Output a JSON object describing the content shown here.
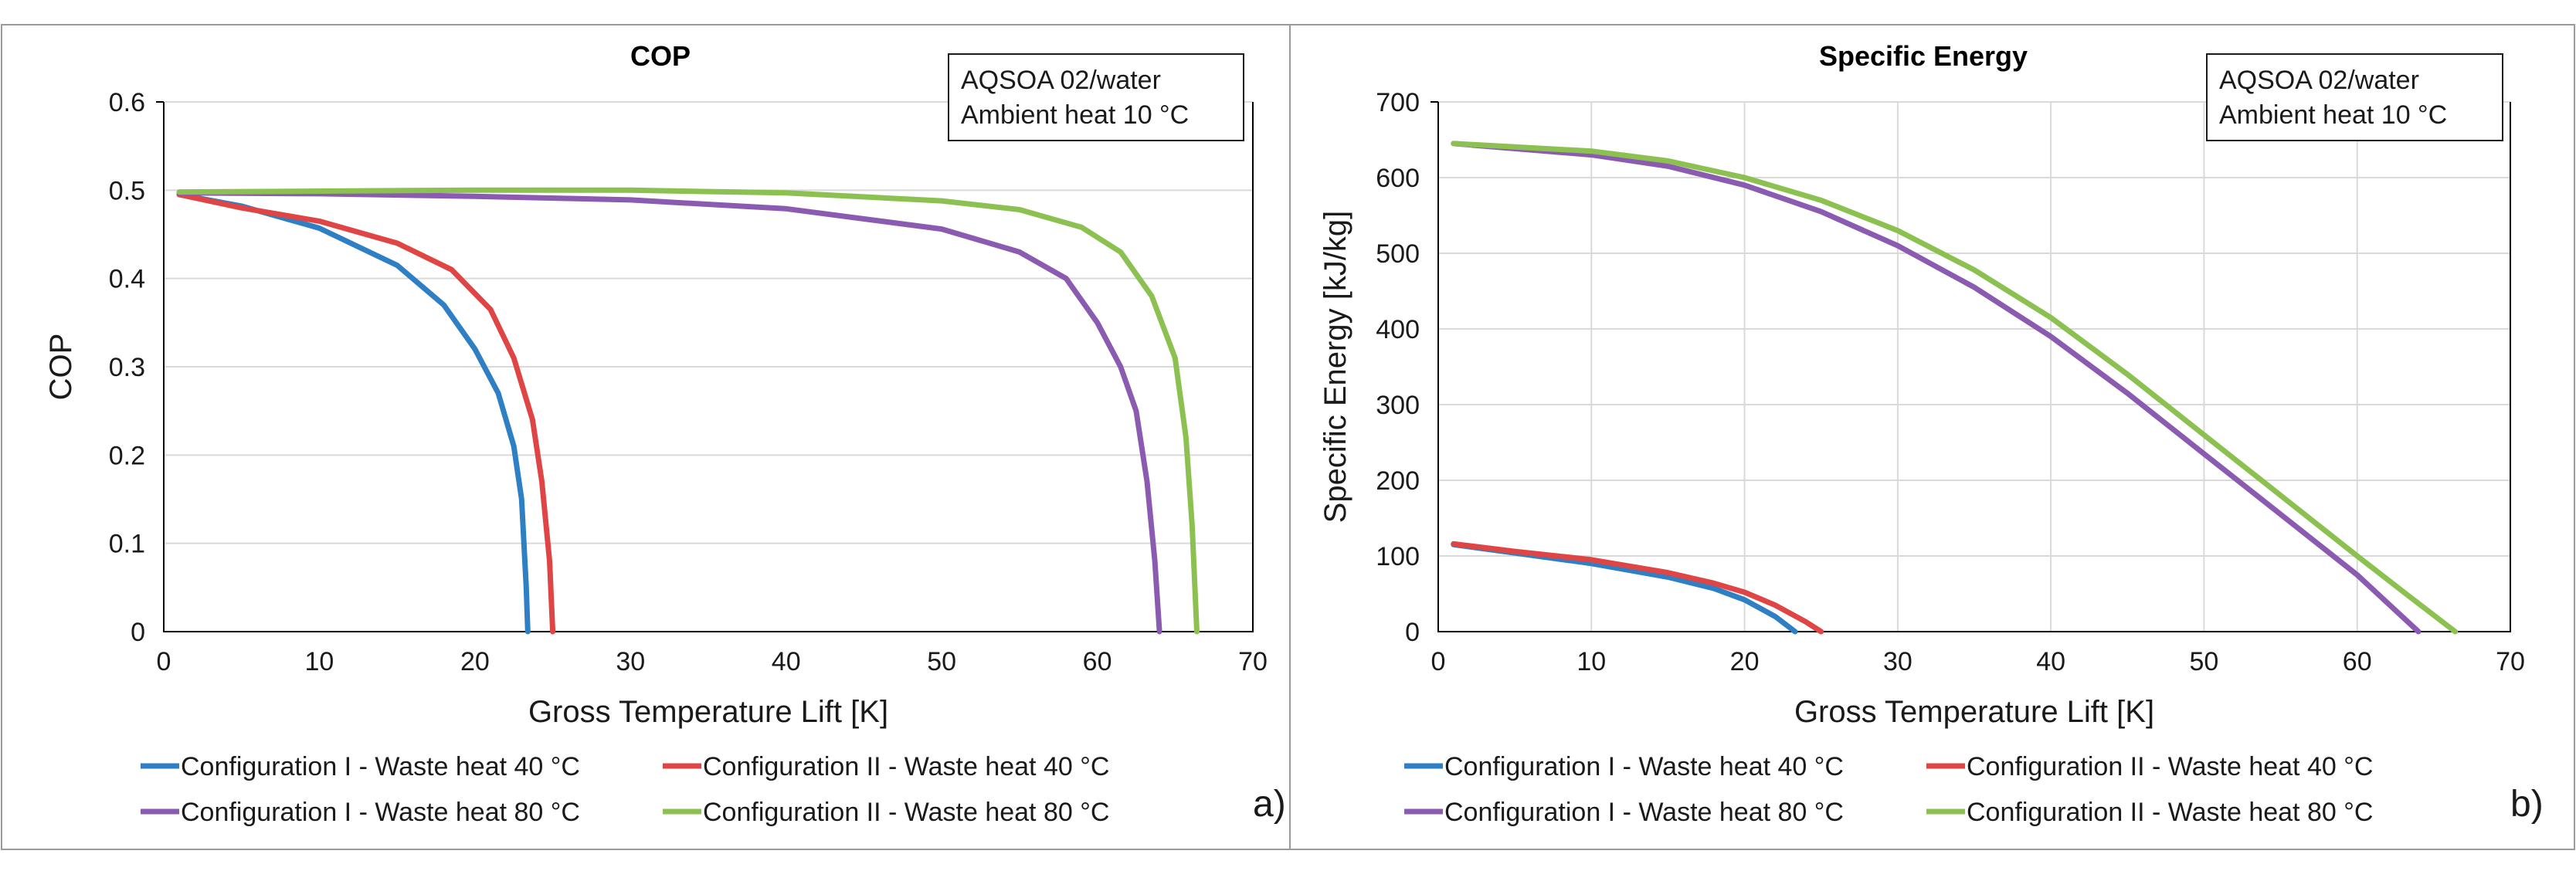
{
  "colors": {
    "series_1": "#2e7fc4",
    "series_2": "#e04545",
    "series_3": "#8a5bb0",
    "series_4": "#8cc152"
  },
  "chart_data": [
    {
      "type": "line",
      "title": "COP",
      "xlabel": "Gross Temperature Lift [K]",
      "ylabel": "COP",
      "xlim": [
        0,
        70
      ],
      "ylim": [
        0,
        0.6
      ],
      "xticks": [
        "0",
        "10",
        "20",
        "30",
        "40",
        "50",
        "60",
        "70"
      ],
      "yticks": [
        "0",
        "0.1",
        "0.2",
        "0.3",
        "0.4",
        "0.5",
        "0.6"
      ],
      "grid": "horizontal",
      "annotation": [
        "AQSOA 02/water",
        "Ambient heat 10 °C"
      ],
      "panel_label": "a)",
      "legend_position": "bottom",
      "series": [
        {
          "name": "Configuration I - Waste heat 40 °C",
          "points": [
            [
              1,
              0.495
            ],
            [
              5,
              0.482
            ],
            [
              10,
              0.457
            ],
            [
              15,
              0.415
            ],
            [
              18,
              0.37
            ],
            [
              20,
              0.32
            ],
            [
              21.5,
              0.27
            ],
            [
              22.5,
              0.21
            ],
            [
              23,
              0.15
            ],
            [
              23.3,
              0.05
            ],
            [
              23.4,
              0
            ]
          ]
        },
        {
          "name": "Configuration II - Waste heat 40 °C",
          "points": [
            [
              1,
              0.495
            ],
            [
              5,
              0.48
            ],
            [
              10,
              0.465
            ],
            [
              15,
              0.44
            ],
            [
              18.5,
              0.41
            ],
            [
              21,
              0.365
            ],
            [
              22.5,
              0.31
            ],
            [
              23.7,
              0.24
            ],
            [
              24.3,
              0.17
            ],
            [
              24.8,
              0.08
            ],
            [
              25,
              0
            ]
          ]
        },
        {
          "name": "Configuration I - Waste heat 80 °C",
          "points": [
            [
              1,
              0.497
            ],
            [
              10,
              0.496
            ],
            [
              20,
              0.493
            ],
            [
              30,
              0.489
            ],
            [
              40,
              0.479
            ],
            [
              50,
              0.456
            ],
            [
              55,
              0.43
            ],
            [
              58,
              0.4
            ],
            [
              60,
              0.35
            ],
            [
              61.5,
              0.3
            ],
            [
              62.5,
              0.25
            ],
            [
              63.2,
              0.17
            ],
            [
              63.7,
              0.08
            ],
            [
              64,
              0
            ]
          ]
        },
        {
          "name": "Configuration II - Waste heat 80 °C",
          "points": [
            [
              1,
              0.498
            ],
            [
              10,
              0.499
            ],
            [
              20,
              0.5
            ],
            [
              30,
              0.5
            ],
            [
              40,
              0.497
            ],
            [
              50,
              0.488
            ],
            [
              55,
              0.478
            ],
            [
              59,
              0.458
            ],
            [
              61.5,
              0.43
            ],
            [
              63.5,
              0.38
            ],
            [
              65,
              0.31
            ],
            [
              65.7,
              0.22
            ],
            [
              66.1,
              0.12
            ],
            [
              66.4,
              0
            ]
          ]
        }
      ]
    },
    {
      "type": "line",
      "title": "Specific Energy",
      "xlabel": "Gross Temperature Lift [K]",
      "ylabel": "Specific Energy [kJ/kg]",
      "xlim": [
        0,
        70
      ],
      "ylim": [
        0,
        700
      ],
      "xticks": [
        "0",
        "10",
        "20",
        "30",
        "40",
        "50",
        "60",
        "70"
      ],
      "yticks": [
        "0",
        "100",
        "200",
        "300",
        "400",
        "500",
        "600",
        "700"
      ],
      "grid": "both",
      "annotation": [
        "AQSOA 02/water",
        "Ambient heat 10 °C"
      ],
      "panel_label": "b)",
      "legend_position": "bottom",
      "series": [
        {
          "name": "Configuration I - Waste heat 40 °C",
          "points": [
            [
              1,
              115
            ],
            [
              5,
              104
            ],
            [
              10,
              90
            ],
            [
              15,
              72
            ],
            [
              18,
              57
            ],
            [
              20,
              42
            ],
            [
              22,
              20
            ],
            [
              23.3,
              0
            ]
          ]
        },
        {
          "name": "Configuration II - Waste heat 40 °C",
          "points": [
            [
              1,
              116
            ],
            [
              5,
              106
            ],
            [
              10,
              95
            ],
            [
              15,
              78
            ],
            [
              18,
              64
            ],
            [
              20,
              52
            ],
            [
              22,
              35
            ],
            [
              24,
              13
            ],
            [
              25,
              0
            ]
          ]
        },
        {
          "name": "Configuration I - Waste heat 80 °C",
          "points": [
            [
              1,
              645
            ],
            [
              10,
              630
            ],
            [
              15,
              615
            ],
            [
              20,
              590
            ],
            [
              25,
              555
            ],
            [
              30,
              510
            ],
            [
              35,
              455
            ],
            [
              40,
              390
            ],
            [
              45,
              315
            ],
            [
              50,
              235
            ],
            [
              55,
              155
            ],
            [
              60,
              75
            ],
            [
              64,
              0
            ]
          ]
        },
        {
          "name": "Configuration II - Waste heat 80 °C",
          "points": [
            [
              1,
              645
            ],
            [
              10,
              635
            ],
            [
              15,
              622
            ],
            [
              20,
              600
            ],
            [
              25,
              570
            ],
            [
              30,
              530
            ],
            [
              35,
              478
            ],
            [
              40,
              415
            ],
            [
              45,
              340
            ],
            [
              50,
              260
            ],
            [
              55,
              180
            ],
            [
              60,
              100
            ],
            [
              63.5,
              45
            ],
            [
              66.4,
              0
            ]
          ]
        }
      ]
    }
  ]
}
